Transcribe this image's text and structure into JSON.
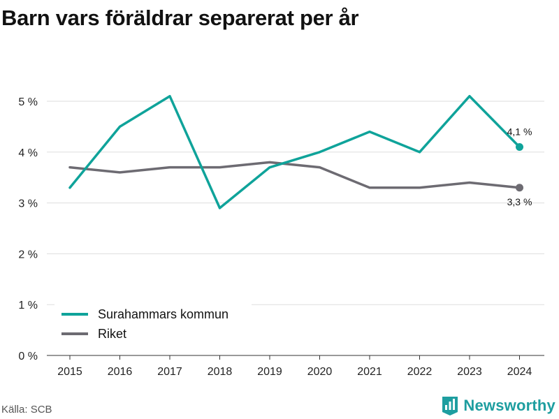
{
  "title": "Barn vars föräldrar separerat per år",
  "source": "Källa: SCB",
  "brand": {
    "name": "Newsworthy",
    "icon": "bar-chart-logo-icon"
  },
  "colors": {
    "series_1": "#0fa39a",
    "series_2": "#6d6b72",
    "grid": "#dddddd",
    "axis": "#333333",
    "brand": "#1e9ea0"
  },
  "chart_data": {
    "type": "line",
    "title": "Barn vars föräldrar separerat per år",
    "x": [
      "2015",
      "2016",
      "2017",
      "2018",
      "2019",
      "2020",
      "2021",
      "2022",
      "2023",
      "2024"
    ],
    "series": [
      {
        "name": "Surahammars kommun",
        "color": "#0fa39a",
        "values": [
          3.3,
          4.5,
          5.1,
          2.9,
          3.7,
          4.0,
          4.4,
          4.0,
          5.1,
          4.1
        ],
        "end_label": "4,1 %"
      },
      {
        "name": "Riket",
        "color": "#6d6b72",
        "values": [
          3.7,
          3.6,
          3.7,
          3.7,
          3.8,
          3.7,
          3.3,
          3.3,
          3.4,
          3.3
        ],
        "end_label": "3,3 %"
      }
    ],
    "ylim": [
      0,
      5
    ],
    "yticks": [
      0,
      1,
      2,
      3,
      4,
      5
    ],
    "ytick_labels": [
      "0 %",
      "1 %",
      "2 %",
      "3 %",
      "4 %",
      "5 %"
    ],
    "grid": true,
    "legend_position": "bottom-left"
  }
}
